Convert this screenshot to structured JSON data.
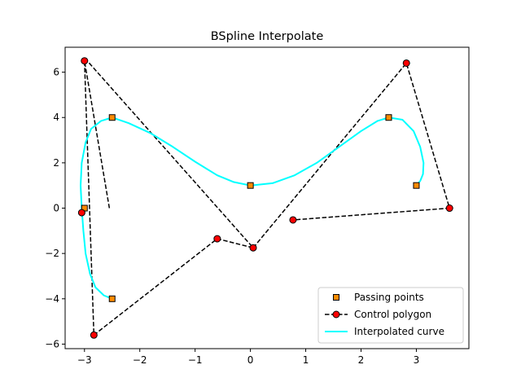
{
  "chart_data": {
    "type": "line",
    "title": "BSpline Interpolate",
    "xlabel": "",
    "ylabel": "",
    "xlim": [
      -3.35,
      3.95
    ],
    "ylim": [
      -6.2,
      7.1
    ],
    "xticks": [
      -3,
      -2,
      -1,
      0,
      1,
      2,
      3
    ],
    "xtick_labels": [
      "−3",
      "−2",
      "−1",
      "0",
      "1",
      "2",
      "3"
    ],
    "yticks": [
      -6,
      -4,
      -2,
      0,
      2,
      4,
      6
    ],
    "ytick_labels": [
      "−6",
      "−4",
      "−2",
      "0",
      "2",
      "4",
      "6"
    ],
    "grid": false,
    "legend_position": "lower-right",
    "series": [
      {
        "name": "Passing points",
        "kind": "markers",
        "marker": "square",
        "color": "#ff8c00",
        "edge": "#000000",
        "x": [
          -2.5,
          -3.0,
          -2.5,
          0.0,
          2.5,
          3.0
        ],
        "y": [
          4.0,
          0.0,
          -4.0,
          1.0,
          4.0,
          1.0
        ]
      },
      {
        "name": "Control polygon",
        "kind": "line-markers",
        "marker": "circle",
        "linestyle": "dashed",
        "color": "#000000",
        "marker_color": "#ff0000",
        "segments": [
          {
            "x": [
              -2.55,
              -3.0,
              -2.83,
              -0.6,
              0.05,
              -2.95
            ],
            "y": [
              0.0,
              6.5,
              -5.6,
              -1.35,
              -1.75,
              6.5
            ]
          },
          {
            "x": [
              0.05,
              2.82,
              3.6,
              0.77
            ],
            "y": [
              -1.75,
              6.4,
              0.0,
              -0.52
            ]
          }
        ],
        "x": [
          -3.0,
          -2.83,
          -0.6,
          0.05,
          2.82,
          3.6,
          0.77,
          -3.05
        ],
        "y": [
          6.5,
          -5.6,
          -1.35,
          -1.75,
          6.4,
          0.0,
          -0.52,
          -0.2
        ]
      },
      {
        "name": "Interpolated curve",
        "kind": "line",
        "color": "#00ffff",
        "x": [
          -2.5,
          -2.7,
          -2.88,
          -2.98,
          -3.05,
          -3.07,
          -3.05,
          -3.02,
          -2.98,
          -2.9,
          -2.8,
          -2.65,
          -2.5,
          -2.5,
          -2.2,
          -1.8,
          -1.4,
          -1.0,
          -0.6,
          -0.3,
          0.0,
          0.4,
          0.8,
          1.2,
          1.6,
          2.0,
          2.3,
          2.5,
          2.75,
          2.95,
          3.07,
          3.13,
          3.12,
          3.07,
          3.0
        ],
        "y": [
          4.0,
          3.85,
          3.5,
          2.9,
          2.0,
          1.0,
          0.0,
          -1.0,
          -2.0,
          -2.9,
          -3.5,
          -3.85,
          -4.0,
          4.0,
          3.75,
          3.3,
          2.7,
          2.05,
          1.45,
          1.15,
          1.0,
          1.1,
          1.45,
          2.0,
          2.7,
          3.4,
          3.85,
          4.0,
          3.9,
          3.4,
          2.7,
          2.0,
          1.5,
          1.2,
          1.0
        ],
        "breaks": [
          13
        ]
      }
    ]
  }
}
